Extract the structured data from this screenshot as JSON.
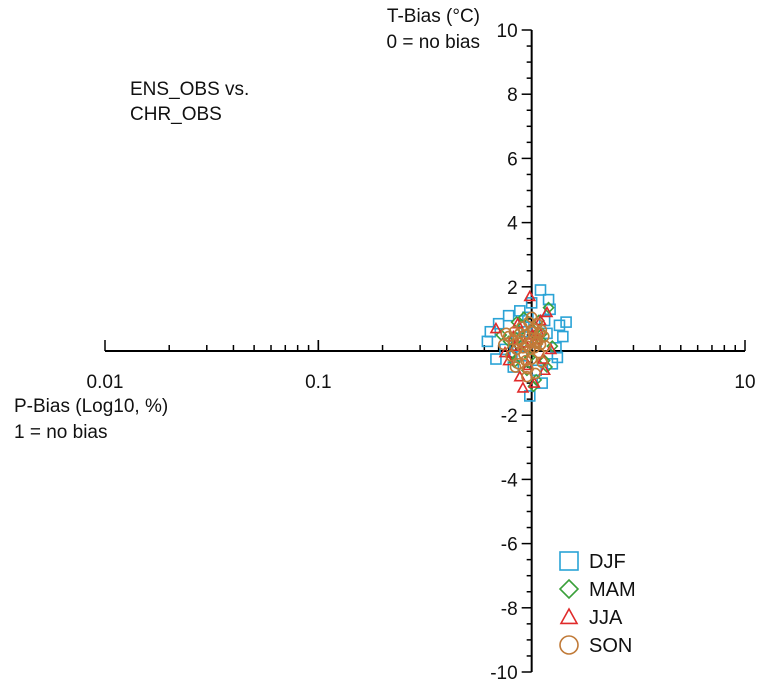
{
  "chart_data": {
    "type": "scatter",
    "annotation": [
      "ENS_OBS vs.",
      "CHR_OBS"
    ],
    "xlabel": [
      "P-Bias (Log10, %)",
      "1 = no bias"
    ],
    "ylabel": [
      "T-Bias (°C)",
      "0 = no bias"
    ],
    "xscale": "log",
    "xlim": [
      0.01,
      10
    ],
    "ylim": [
      -10,
      10
    ],
    "x_ticks": [
      {
        "value": 0.01,
        "label": "0.01"
      },
      {
        "value": 0.1,
        "label": "0.1"
      },
      {
        "value": 10,
        "label": "10"
      }
    ],
    "y_ticks": [
      {
        "value": 10,
        "label": "10"
      },
      {
        "value": 8,
        "label": "8"
      },
      {
        "value": 6,
        "label": "6"
      },
      {
        "value": 4,
        "label": "4"
      },
      {
        "value": 2,
        "label": "2"
      },
      {
        "value": 0,
        "label": "0"
      },
      {
        "value": -2,
        "label": "-2"
      },
      {
        "value": -4,
        "label": "-4"
      },
      {
        "value": -6,
        "label": "-6"
      },
      {
        "value": -8,
        "label": "-8"
      },
      {
        "value": -10,
        "label": "-10"
      }
    ],
    "grid": false,
    "legend_position": "bottom-right",
    "series": [
      {
        "name": "DJF",
        "marker": "square",
        "color": "#2aa3d6",
        "points": [
          [
            0.62,
            0.3
          ],
          [
            0.7,
            0.85
          ],
          [
            0.78,
            1.1
          ],
          [
            0.85,
            0.4
          ],
          [
            0.9,
            -0.15
          ],
          [
            0.95,
            0.6
          ],
          [
            1.0,
            1.5
          ],
          [
            1.05,
            -0.6
          ],
          [
            1.1,
            1.9
          ],
          [
            1.2,
            1.6
          ],
          [
            1.3,
            0.1
          ],
          [
            1.35,
            0.8
          ],
          [
            1.25,
            -0.4
          ],
          [
            1.15,
            0.95
          ],
          [
            0.98,
            -1.4
          ],
          [
            0.88,
            1.25
          ],
          [
            0.75,
            0.05
          ],
          [
            0.68,
            -0.25
          ],
          [
            1.4,
            0.45
          ],
          [
            1.45,
            0.9
          ],
          [
            1.12,
            -1.0
          ],
          [
            0.92,
            0.75
          ],
          [
            0.82,
            -0.5
          ],
          [
            1.22,
            1.3
          ],
          [
            0.64,
            0.6
          ],
          [
            1.05,
            0.3
          ],
          [
            0.96,
            1.05
          ],
          [
            1.32,
            -0.2
          ],
          [
            0.86,
            0.15
          ],
          [
            1.18,
            0.55
          ]
        ]
      },
      {
        "name": "MAM",
        "marker": "diamond",
        "color": "#3aa03a",
        "points": [
          [
            0.72,
            0.5
          ],
          [
            0.8,
            -0.1
          ],
          [
            0.85,
            0.9
          ],
          [
            0.9,
            0.2
          ],
          [
            0.95,
            -0.6
          ],
          [
            1.0,
            0.7
          ],
          [
            1.05,
            -0.9
          ],
          [
            1.1,
            0.35
          ],
          [
            1.15,
            -0.3
          ],
          [
            1.2,
            1.35
          ],
          [
            1.25,
            0.15
          ],
          [
            0.88,
            0.6
          ],
          [
            0.98,
            -0.2
          ],
          [
            1.08,
            0.95
          ],
          [
            0.78,
            0.3
          ],
          [
            1.02,
            -1.1
          ],
          [
            0.92,
            1.05
          ],
          [
            1.18,
            -0.5
          ],
          [
            0.83,
            -0.35
          ],
          [
            1.12,
            0.55
          ]
        ]
      },
      {
        "name": "JJA",
        "marker": "triangle",
        "color": "#e02a2a",
        "points": [
          [
            0.68,
            0.7
          ],
          [
            0.75,
            -0.05
          ],
          [
            0.82,
            0.45
          ],
          [
            0.88,
            -0.8
          ],
          [
            0.93,
            0.25
          ],
          [
            0.98,
            1.7
          ],
          [
            1.03,
            -1.0
          ],
          [
            1.08,
            0.6
          ],
          [
            1.13,
            -0.25
          ],
          [
            1.18,
            1.2
          ],
          [
            1.23,
            0.05
          ],
          [
            0.86,
            0.85
          ],
          [
            0.96,
            -0.45
          ],
          [
            1.06,
            0.35
          ],
          [
            0.78,
            -0.3
          ],
          [
            1.1,
            0.95
          ],
          [
            0.91,
            -1.15
          ],
          [
            0.84,
            0.15
          ],
          [
            1.01,
            0.5
          ],
          [
            1.15,
            -0.6
          ]
        ]
      },
      {
        "name": "SON",
        "marker": "circle",
        "color": "#c07a38",
        "points": [
          [
            0.74,
            0.2
          ],
          [
            0.78,
            0.45
          ],
          [
            0.8,
            -0.15
          ],
          [
            0.83,
            0.6
          ],
          [
            0.85,
            0.05
          ],
          [
            0.87,
            -0.4
          ],
          [
            0.89,
            0.35
          ],
          [
            0.9,
            0.75
          ],
          [
            0.92,
            -0.1
          ],
          [
            0.93,
            0.5
          ],
          [
            0.95,
            0.15
          ],
          [
            0.96,
            -0.55
          ],
          [
            0.97,
            0.9
          ],
          [
            0.99,
            0.3
          ],
          [
            1.0,
            -0.25
          ],
          [
            1.01,
            0.6
          ],
          [
            1.03,
            0.1
          ],
          [
            1.04,
            -0.7
          ],
          [
            1.05,
            0.4
          ],
          [
            1.06,
            0.85
          ],
          [
            1.08,
            -0.05
          ],
          [
            1.09,
            0.55
          ],
          [
            1.1,
            0.2
          ],
          [
            1.12,
            -0.35
          ],
          [
            1.14,
            0.45
          ],
          [
            0.86,
            0.25
          ],
          [
            0.94,
            -0.3
          ],
          [
            1.02,
            0.7
          ],
          [
            0.88,
            0.55
          ],
          [
            0.98,
            0.05
          ],
          [
            1.07,
            0.3
          ],
          [
            0.91,
            0.1
          ],
          [
            0.82,
            0.35
          ],
          [
            1.11,
            0.65
          ],
          [
            0.95,
            -0.8
          ],
          [
            1.0,
            1.05
          ],
          [
            0.76,
            0.55
          ],
          [
            1.16,
            0.15
          ],
          [
            0.84,
            -0.5
          ],
          [
            1.04,
            0.25
          ]
        ]
      }
    ]
  }
}
